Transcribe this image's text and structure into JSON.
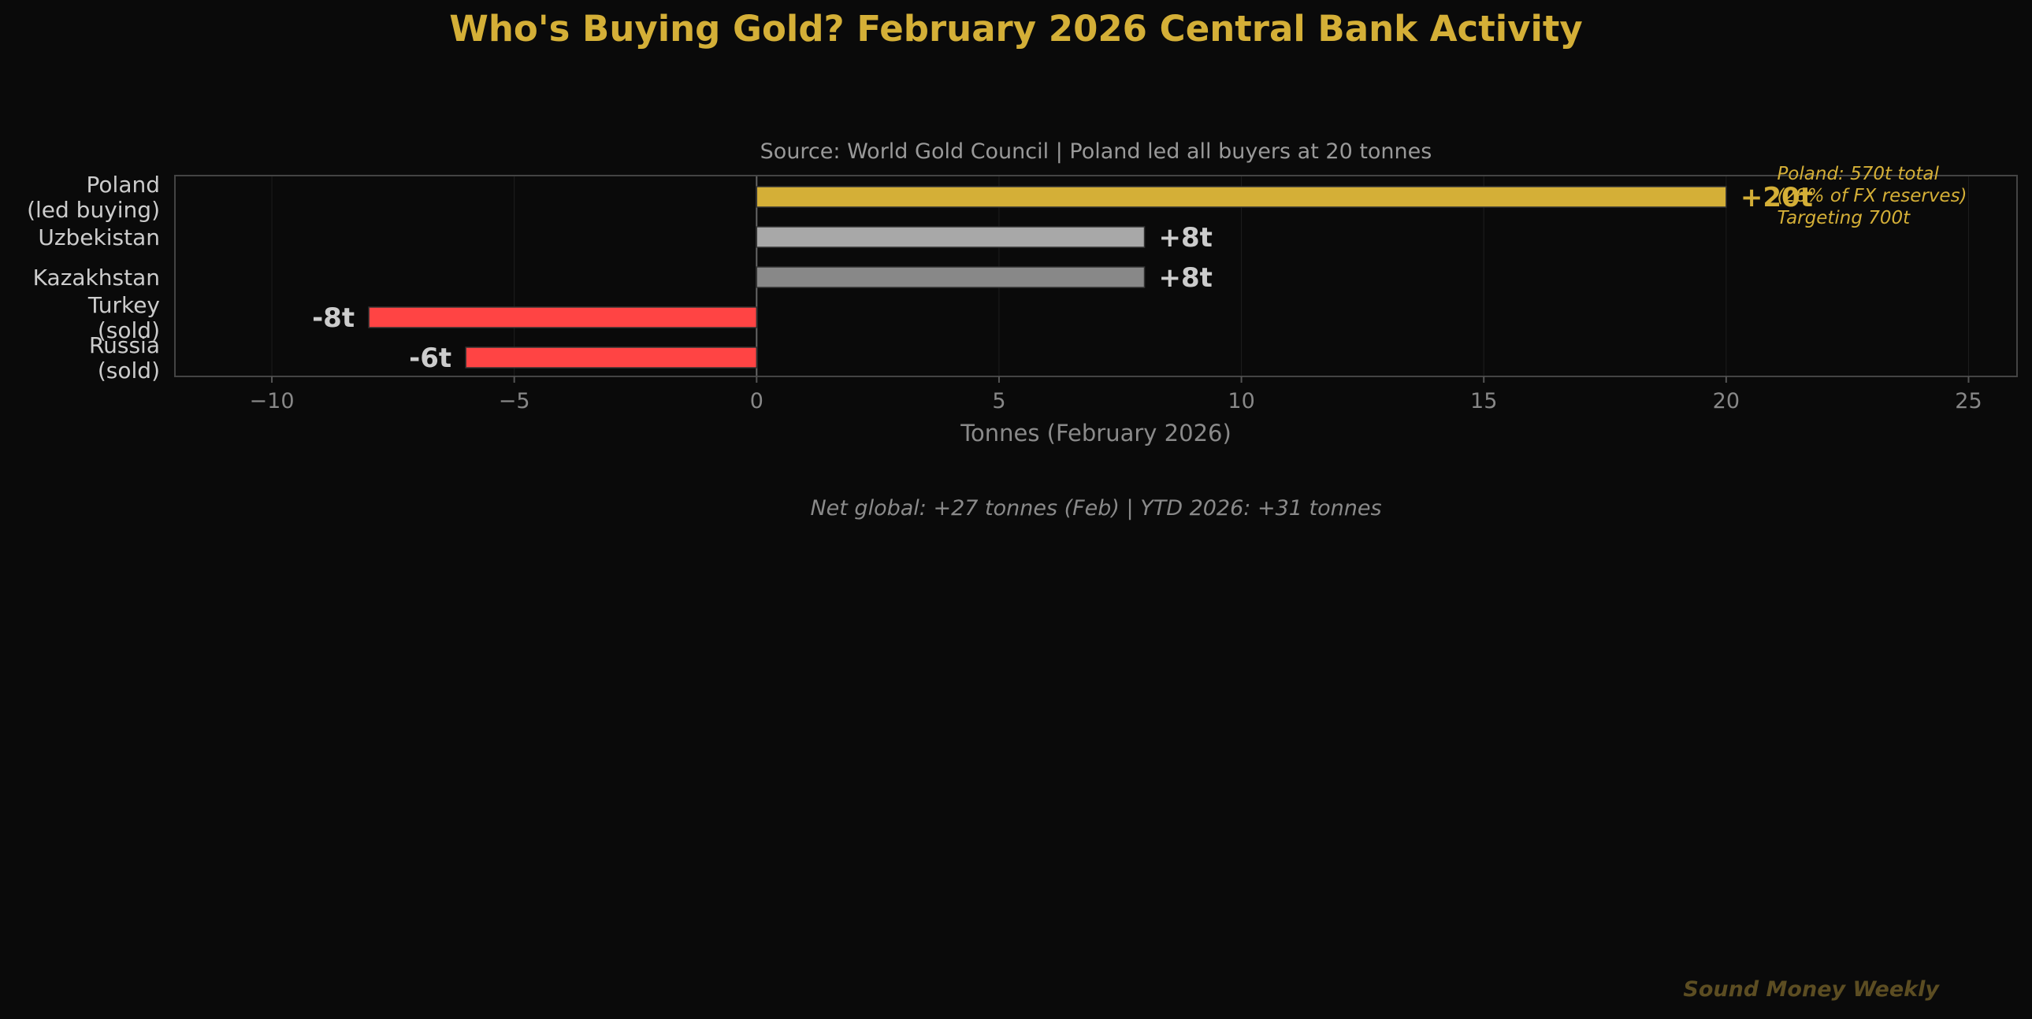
{
  "chart_data": {
    "type": "bar",
    "orientation": "horizontal",
    "title": "Who's Buying Gold? February 2026 Central Bank Activity",
    "subtitle": "Source: World Gold Council  |  Poland led all buyers at 20 tonnes",
    "xlabel": "Tonnes (February 2026)",
    "ylabel": "",
    "xlim": [
      -12,
      26
    ],
    "xticks": [
      -10,
      -5,
      0,
      5,
      10,
      15,
      20,
      25
    ],
    "xtick_labels": [
      "−10",
      "−5",
      "0",
      "5",
      "10",
      "15",
      "20",
      "25"
    ],
    "grid": true,
    "categories": [
      [
        "Poland",
        "(led buying)"
      ],
      [
        "Uzbekistan"
      ],
      [
        "Kazakhstan"
      ],
      [
        "Turkey",
        "(sold)"
      ],
      [
        "Russia",
        "(sold)"
      ]
    ],
    "values": [
      20,
      8,
      8,
      -8,
      -6
    ],
    "value_labels": [
      "+20t",
      "+8t",
      "+8t",
      "-8t",
      "-6t"
    ],
    "bar_colors": [
      "#d4af37",
      "#a8a8a8",
      "#888888",
      "#ff4444",
      "#ff4444"
    ],
    "value_label_colors": [
      "#d4af37",
      "#cccccc",
      "#cccccc",
      "#cccccc",
      "#cccccc"
    ],
    "annotation": {
      "lines": [
        "Poland: 570t total",
        "(28% of FX reserves)",
        "Targeting 700t"
      ],
      "color": "#d4af37"
    },
    "footnote": "Net global: +27 tonnes (Feb)  |  YTD 2026: +31 tonnes",
    "watermark": "Sound Money Weekly"
  },
  "colors": {
    "background": "#0a0a0a",
    "accent_gold": "#d4af37",
    "axis_text": "#888888",
    "category_text": "#cccccc",
    "spine": "#444444"
  }
}
